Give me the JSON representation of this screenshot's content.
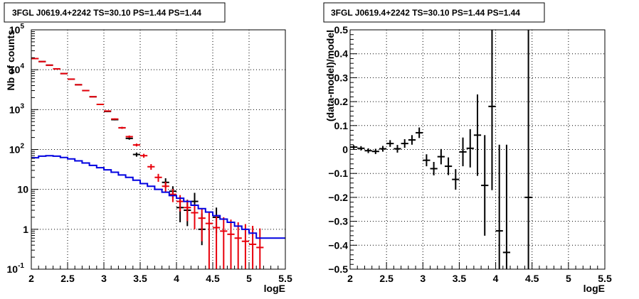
{
  "chart_data": [
    {
      "type": "histogram",
      "title": "3FGL J0619.4+2242 TS=30.10 PS=1.44 PS=1.44",
      "xlabel": "logE",
      "ylabel": "Nb of counts",
      "xlim": [
        2,
        5.5
      ],
      "ylim": [
        0.1,
        100000
      ],
      "yscale": "log",
      "grid": true,
      "xticks": [
        "2",
        "2.5",
        "3",
        "3.5",
        "4",
        "4.5",
        "5",
        "5.5"
      ],
      "yticks": [
        "10^-1",
        "1",
        "10",
        "10^2",
        "10^3",
        "10^4",
        "10^5"
      ],
      "series": [
        {
          "color": "#000000",
          "style": "errorbar",
          "x": [
            2.05,
            2.15,
            2.25,
            2.35,
            2.45,
            2.55,
            2.65,
            2.75,
            2.85,
            2.95,
            3.05,
            3.15,
            3.25,
            3.35,
            3.45,
            3.55,
            3.65,
            3.75,
            3.85,
            3.95,
            4.05,
            4.15,
            4.25,
            4.35,
            4.45,
            4.55,
            4.65,
            4.75,
            4.85,
            4.95,
            5.05,
            5.15
          ],
          "y": [
            19000,
            16000,
            13000,
            10500,
            8000,
            5800,
            4200,
            3000,
            2100,
            1350,
            900,
            560,
            350,
            190,
            75,
            null,
            null,
            null,
            15,
            9,
            null,
            null,
            null,
            null,
            null,
            2,
            null,
            null,
            null,
            null,
            null,
            null
          ],
          "yerr_low": [
            140,
            130,
            115,
            100,
            90,
            75,
            65,
            55,
            45,
            37,
            30,
            24,
            19,
            14,
            9,
            null,
            null,
            null,
            4,
            3,
            null,
            null,
            null,
            null,
            null,
            1.2,
            null,
            null,
            null,
            null,
            null,
            null
          ],
          "yerr_high": [
            140,
            130,
            115,
            100,
            90,
            75,
            65,
            55,
            45,
            37,
            30,
            24,
            19,
            14,
            9,
            null,
            null,
            null,
            4,
            3,
            null,
            null,
            null,
            null,
            null,
            1.5,
            null,
            null,
            null,
            null,
            null,
            null
          ]
        },
        {
          "color": "#000000",
          "style": "errorbar",
          "x": [
            4.05,
            4.15,
            4.25,
            4.35
          ],
          "y": [
            3.5,
            3,
            5,
            1
          ],
          "yerr_low": [
            2,
            1.8,
            2.5,
            0.6
          ],
          "yerr_high": [
            3,
            2.5,
            3.2,
            1.5
          ]
        },
        {
          "color": "#e8000b",
          "style": "model-markers",
          "x": [
            2.05,
            2.15,
            2.25,
            2.35,
            2.45,
            2.55,
            2.65,
            2.75,
            2.85,
            2.95,
            3.05,
            3.15,
            3.25,
            3.35,
            3.45,
            3.55,
            3.65,
            3.75,
            3.85,
            3.95,
            4.05,
            4.15,
            4.25,
            4.35,
            4.45,
            4.55,
            4.65,
            4.75,
            4.85,
            4.95,
            5.05,
            5.15
          ],
          "y": [
            19000,
            16000,
            13000,
            10500,
            8000,
            5800,
            4200,
            3000,
            2100,
            1350,
            920,
            580,
            350,
            210,
            130,
            70,
            37,
            20,
            12,
            7.5,
            5,
            3.5,
            2.6,
            1.9,
            1.4,
            1.1,
            0.9,
            0.75,
            0.6,
            0.5,
            0.42,
            0.35
          ],
          "yerr_low": [
            140,
            130,
            115,
            100,
            90,
            75,
            65,
            55,
            45,
            37,
            30,
            24,
            19,
            14,
            11,
            8,
            6,
            4.5,
            3.5,
            2.7,
            2.2,
            1.9,
            1.6,
            1.4,
            1.3,
            1.05,
            0.88,
            0.74,
            0.6,
            0.5,
            0.42,
            0.35
          ],
          "yerr_high": [
            140,
            130,
            115,
            100,
            90,
            75,
            65,
            55,
            45,
            37,
            30,
            24,
            19,
            14,
            11,
            8,
            6,
            4.5,
            3.5,
            2.7,
            2.2,
            1.9,
            1.6,
            1.4,
            1.3,
            1.2,
            1.1,
            1,
            0.9,
            0.85,
            0.8,
            0.7
          ]
        },
        {
          "color": "#0000e0",
          "style": "step",
          "x": [
            2.0,
            2.1,
            2.2,
            2.3,
            2.4,
            2.5,
            2.6,
            2.7,
            2.8,
            2.9,
            3.0,
            3.1,
            3.2,
            3.3,
            3.4,
            3.5,
            3.6,
            3.7,
            3.8,
            3.9,
            4.0,
            4.1,
            4.2,
            4.3,
            4.4,
            4.5,
            4.6,
            4.7,
            4.8,
            4.9,
            5.0,
            5.1,
            5.2,
            5.5
          ],
          "y": [
            62,
            68,
            70,
            68,
            63,
            58,
            52,
            46,
            40,
            35,
            31,
            27,
            23,
            20,
            17,
            14,
            12,
            10,
            8.5,
            7,
            6,
            5,
            4,
            3.3,
            2.7,
            2.2,
            1.8,
            1.5,
            1.2,
            1.0,
            0.8,
            0.6,
            0.6
          ]
        }
      ]
    },
    {
      "type": "scatter",
      "title": "3FGL J0619.4+2242 TS=30.10 PS=1.44 PS=1.44",
      "xlabel": "logE",
      "ylabel": "(data-model)/model",
      "xlim": [
        2,
        5.5
      ],
      "ylim": [
        -0.5,
        0.5
      ],
      "grid": true,
      "xticks": [
        "2",
        "2.5",
        "3",
        "3.5",
        "4",
        "4.5",
        "5",
        "5.5"
      ],
      "yticks": [
        "−0.5",
        "−0.4",
        "−0.3",
        "−0.2",
        "−0.1",
        "0",
        "0.1",
        "0.2",
        "0.3",
        "0.4",
        "0.5"
      ],
      "series": [
        {
          "color": "#000000",
          "style": "errorbar",
          "x": [
            2.05,
            2.15,
            2.25,
            2.35,
            2.45,
            2.55,
            2.65,
            2.75,
            2.85,
            2.95,
            3.05,
            3.15,
            3.25,
            3.35,
            3.45,
            3.55,
            3.65,
            3.75,
            3.85,
            3.95,
            4.05,
            4.15,
            4.45
          ],
          "y": [
            0.01,
            0.005,
            -0.005,
            -0.008,
            0.003,
            0.025,
            0.003,
            0.025,
            0.04,
            0.07,
            -0.045,
            -0.08,
            -0.03,
            -0.07,
            -0.125,
            -0.01,
            0.005,
            0.06,
            -0.15,
            0.18,
            -0.34,
            -0.43,
            -0.2
          ],
          "yerr": [
            0.008,
            0.009,
            0.01,
            0.011,
            0.012,
            0.014,
            0.016,
            0.018,
            0.02,
            0.022,
            0.025,
            0.028,
            0.032,
            0.037,
            0.043,
            0.06,
            0.08,
            0.17,
            0.21,
            0.35,
            0.36,
            0.45,
            0.9
          ]
        }
      ]
    }
  ]
}
